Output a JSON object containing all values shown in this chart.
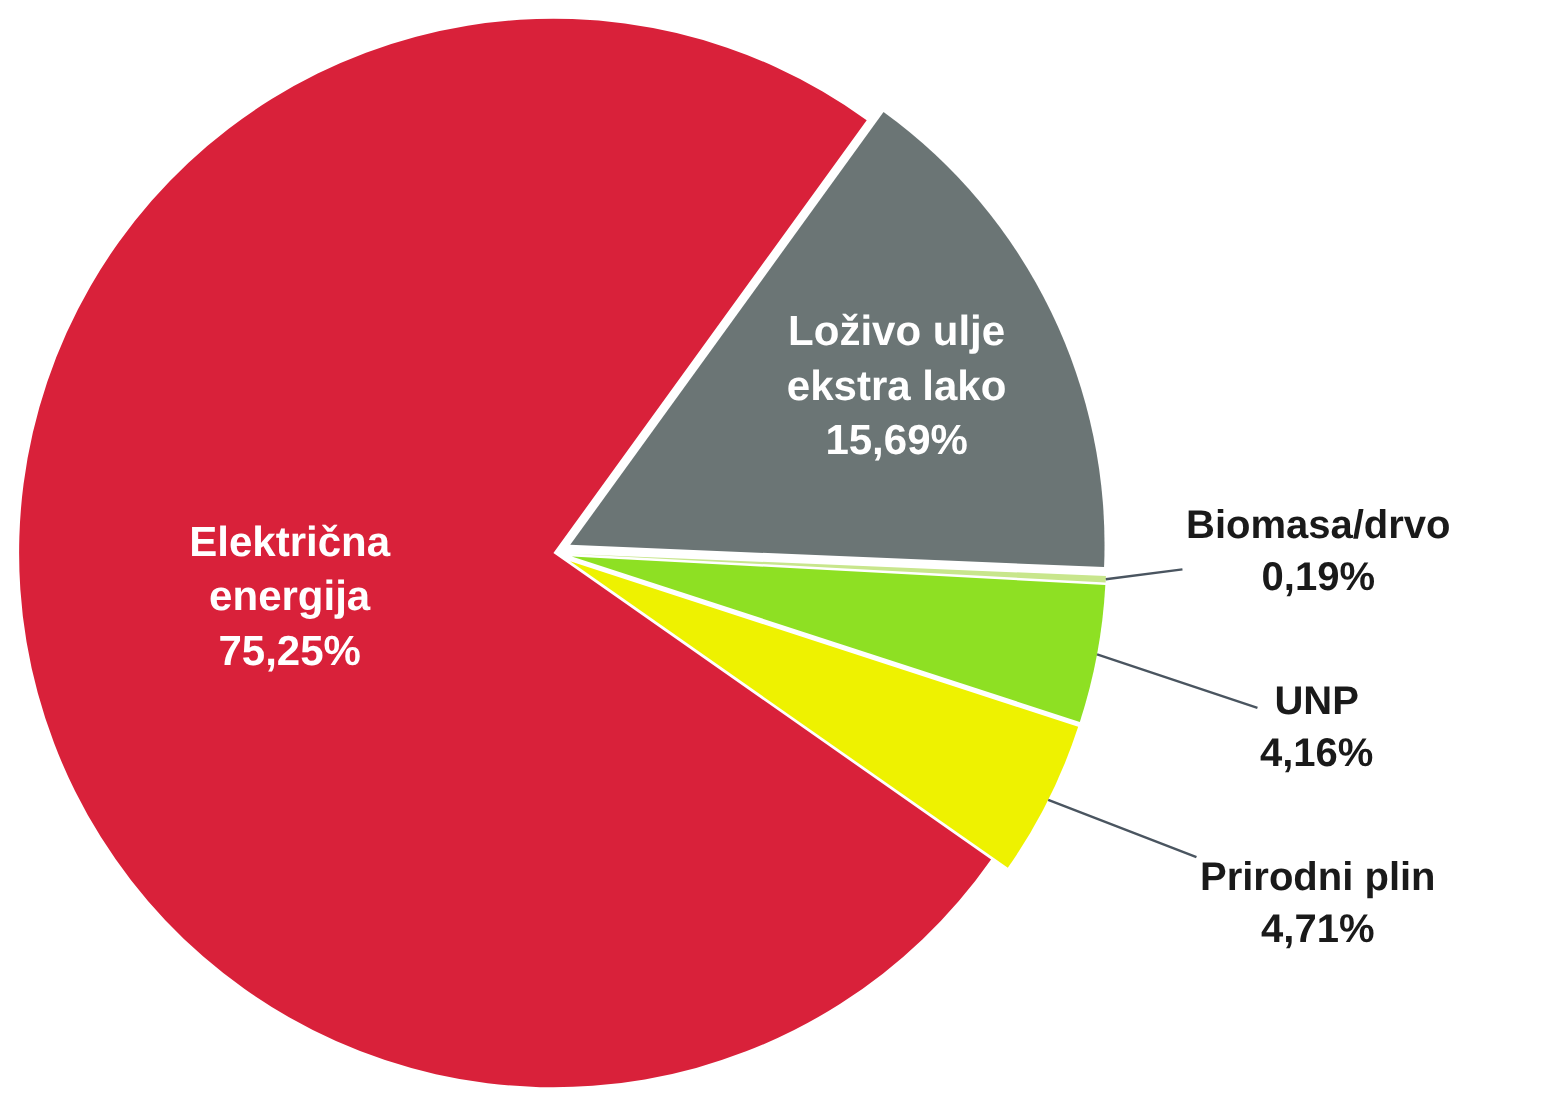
{
  "chart_data": {
    "type": "pie",
    "categories": [
      "Električna energija",
      "Loživo ulje ekstra lako",
      "Biomasa/drvo",
      "UNP",
      "Prirodni plin"
    ],
    "values": [
      75.25,
      15.69,
      0.19,
      4.16,
      4.71
    ],
    "colors": [
      "#d9213a",
      "#6b7575",
      "#c8e68c",
      "#8ee023",
      "#eef200"
    ],
    "value_labels": [
      "75,25%",
      "15,69%",
      "0,19%",
      "4,16%",
      "4,71%"
    ]
  }
}
